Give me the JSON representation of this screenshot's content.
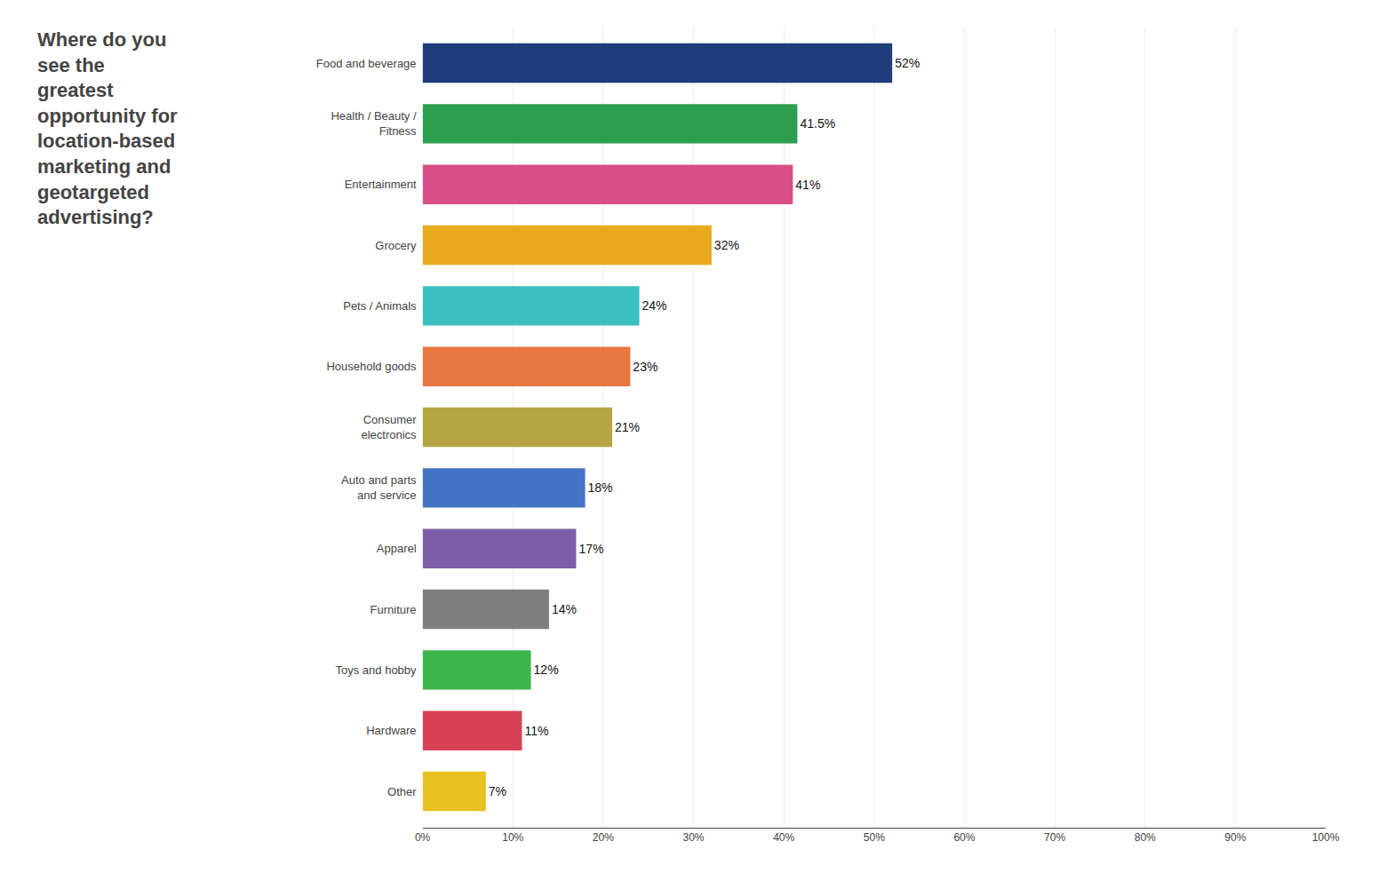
{
  "chart_data": {
    "type": "bar",
    "orientation": "horizontal",
    "title": "Where do you\nsee the\ngreatest\nopportunity for\nlocation-based\nmarketing and\ngeotargeted\nadvertising?",
    "categories": [
      "Food and beverage",
      "Health / Beauty /\nFitness",
      "Entertainment",
      "Grocery",
      "Pets / Animals",
      "Household goods",
      "Consumer\nelectronics",
      "Auto and parts\nand service",
      "Apparel",
      "Furniture",
      "Toys and hobby",
      "Hardware",
      "Other"
    ],
    "values": [
      52,
      41.5,
      41,
      32,
      24,
      23,
      21,
      18,
      17,
      14,
      12,
      11,
      7
    ],
    "value_labels": [
      "52%",
      "41.5%",
      "41%",
      "32%",
      "24%",
      "23%",
      "21%",
      "18%",
      "17%",
      "14%",
      "12%",
      "11%",
      "7%"
    ],
    "colors": [
      "#1f3d7a",
      "#2e9e4f",
      "#d94f8a",
      "#e8a820",
      "#3bbfbf",
      "#e87640",
      "#b5a642",
      "#4472c4",
      "#7b5ea7",
      "#7f7f7f",
      "#3cb54a",
      "#d94055",
      "#e8c020"
    ],
    "xlim": [
      0,
      100
    ],
    "xticks": [
      {
        "value": 0,
        "label": "0%"
      },
      {
        "value": 10,
        "label": "10%"
      },
      {
        "value": 20,
        "label": "20%"
      },
      {
        "value": 30,
        "label": "30%"
      },
      {
        "value": 40,
        "label": "40%"
      },
      {
        "value": 50,
        "label": "50%"
      },
      {
        "value": 60,
        "label": "60%"
      },
      {
        "value": 70,
        "label": "70%"
      },
      {
        "value": 80,
        "label": "80%"
      },
      {
        "value": 90,
        "label": "90%"
      },
      {
        "value": 100,
        "label": "100%"
      }
    ],
    "grid": true,
    "data_labels": true
  }
}
